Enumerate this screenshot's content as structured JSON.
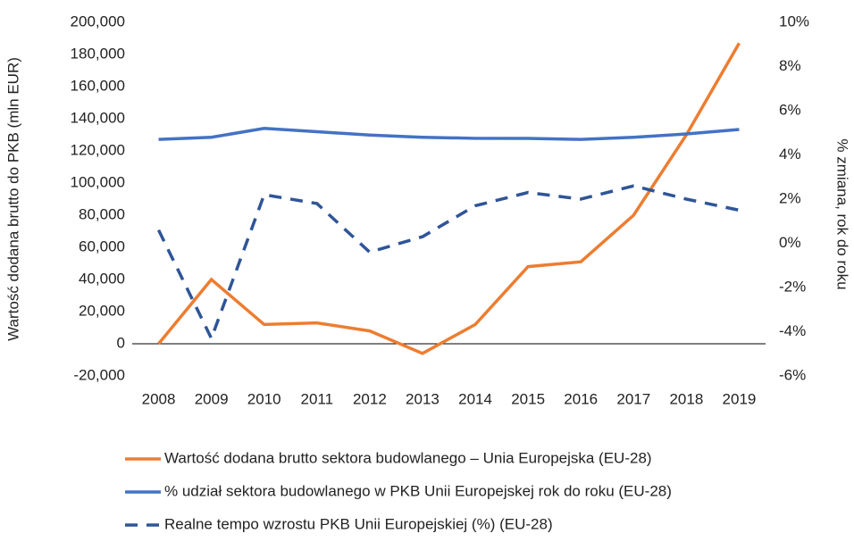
{
  "chart_data": {
    "type": "line",
    "y_label": "Wartość dodana brutto do PKB (mln EUR)",
    "y2_label": "% zmiana, rok do roku",
    "categories": [
      "2008",
      "2009",
      "2010",
      "2011",
      "2012",
      "2013",
      "2014",
      "2015",
      "2016",
      "2017",
      "2018",
      "2019"
    ],
    "series": [
      {
        "name": "Wartość dodana brutto sektora budowlanego – Unia Europejska (EU-28)",
        "color": "#ED7D31",
        "line_style": "solid",
        "values": [
          0,
          40000,
          12000,
          13000,
          8000,
          -6000,
          12000,
          48000,
          51000,
          80000,
          130000,
          187000
        ]
      },
      {
        "name": "% udział sektora budowlanego w PKB Unii Europejskej rok do roku (EU-28)",
        "color": "#4472C4",
        "line_style": "solid",
        "axis": "y2",
        "values": [
          4.7,
          4.8,
          5.2,
          5.05,
          4.9,
          4.8,
          4.75,
          4.75,
          4.7,
          4.8,
          4.95,
          5.15
        ]
      },
      {
        "name": "Realne tempo wzrostu PKB Unii Europejskiej (%) (EU-28)",
        "color": "#2F5597",
        "line_style": "dashed",
        "axis": "y2",
        "values": [
          0.6,
          -4.3,
          2.2,
          1.8,
          -0.4,
          0.3,
          1.7,
          2.3,
          2.0,
          2.6,
          2.0,
          1.5
        ]
      }
    ],
    "ylim": [
      -20000,
      200000
    ],
    "yticks": [
      {
        "value": -20000,
        "label": "-20,000"
      },
      0,
      {
        "value": 20000,
        "label": "20,000"
      },
      {
        "value": 40000,
        "label": "40,000"
      },
      {
        "value": 60000,
        "label": "60,000"
      },
      {
        "value": 80000,
        "label": "80,000"
      },
      {
        "value": 100000,
        "label": "100,000"
      },
      {
        "value": 120000,
        "label": "120,000"
      },
      {
        "value": 140000,
        "label": "140,000"
      },
      {
        "value": 160000,
        "label": "160,000"
      },
      {
        "value": 180000,
        "label": "180,000"
      },
      {
        "value": 200000,
        "label": "200,000"
      }
    ],
    "y2lim": [
      -6,
      10
    ],
    "y2ticks": [
      {
        "value": -6,
        "label": "-6%"
      },
      {
        "value": -4,
        "label": "-4%"
      },
      {
        "value": -2,
        "label": "-2%"
      },
      {
        "value": 0,
        "label": "0%"
      },
      {
        "value": 2,
        "label": "2%"
      },
      {
        "value": 4,
        "label": "4%"
      },
      {
        "value": 6,
        "label": "6%"
      },
      {
        "value": 8,
        "label": "8%"
      },
      {
        "value": 10,
        "label": "10%"
      }
    ],
    "grid": false,
    "legend": "bottom"
  }
}
